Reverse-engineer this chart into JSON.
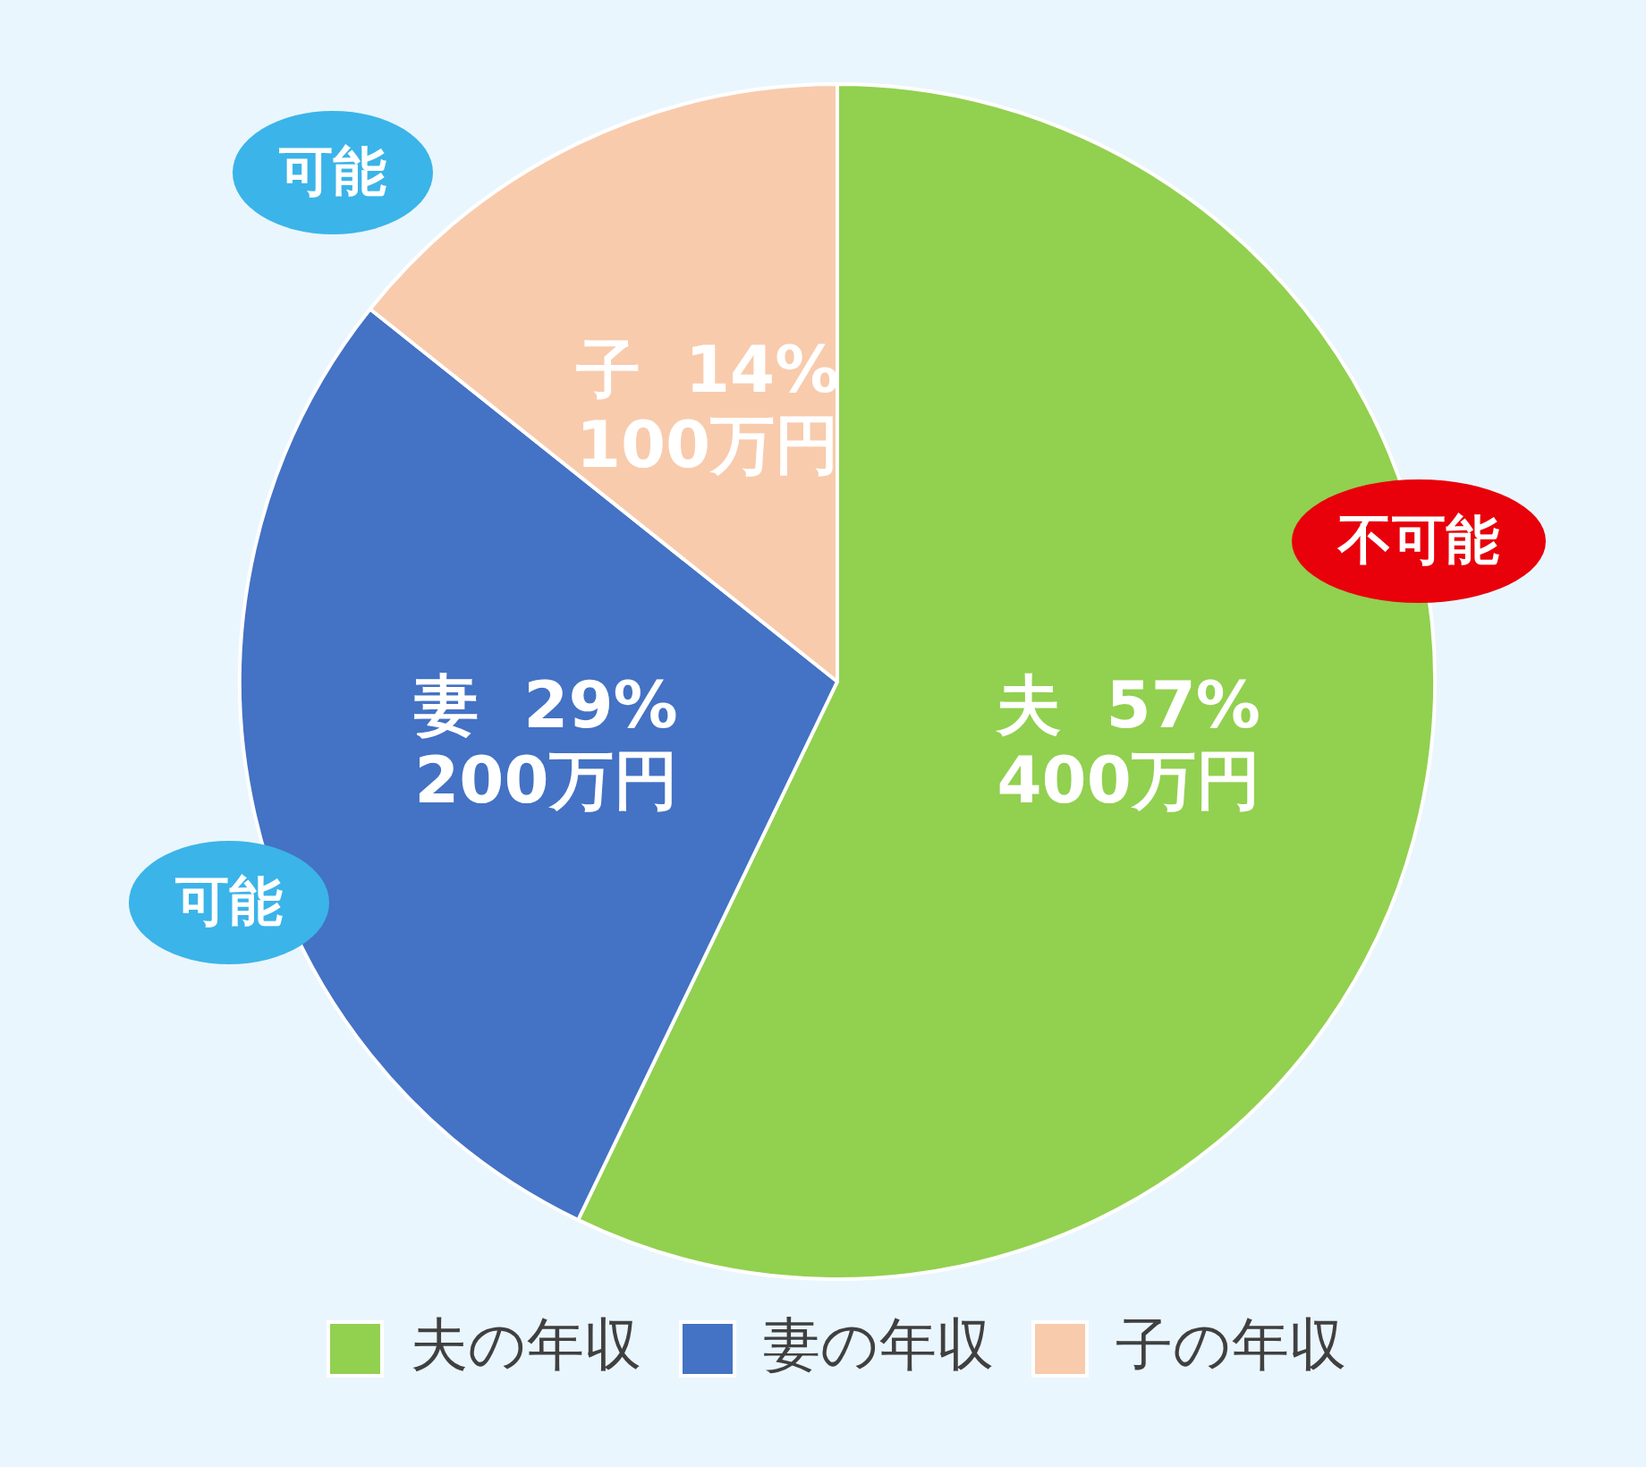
{
  "chart_data": {
    "type": "pie",
    "categories": [
      "夫の年収",
      "妻の年収",
      "子の年収"
    ],
    "values": [
      400,
      200,
      100
    ],
    "colors": [
      "#92d050",
      "#4472c4",
      "#f8cbad"
    ],
    "value_labels": [
      "夫  57%\n400万円",
      "妻  29%\n200万円",
      "子  14%\n100万円"
    ],
    "legend": "bottom",
    "annotations": [
      "不可能",
      "可能",
      "可能"
    ]
  }
}
